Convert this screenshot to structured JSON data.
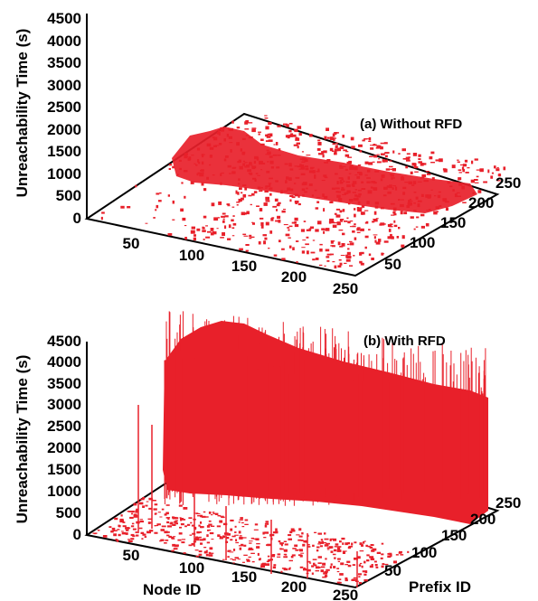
{
  "chart_data": [
    {
      "type": "scatter",
      "panel": "a",
      "annotation": "(a) Without RFD",
      "zlabel": "Unreachability Time (s)",
      "xlabel": "",
      "ylabel": "",
      "z_ticks": [
        "0",
        "500",
        "1000",
        "1500",
        "2000",
        "2500",
        "3000",
        "3500",
        "4000",
        "4500"
      ],
      "x_ticks": [
        "50",
        "100",
        "150",
        "200",
        "250"
      ],
      "y_ticks": [
        "50",
        "100",
        "150",
        "200",
        "250"
      ],
      "xlim": [
        0,
        250
      ],
      "ylim": [
        0,
        250
      ],
      "zlim": [
        0,
        4500
      ],
      "color": "#e8202a",
      "description_values": {
        "typical_max_unreachability_s": 1000,
        "peak_unreachability_s": 1500
      }
    },
    {
      "type": "scatter",
      "panel": "b",
      "annotation": "(b) With RFD",
      "zlabel": "Unreachability Time (s)",
      "xlabel": "Node ID",
      "ylabel": "Prefix ID",
      "z_ticks": [
        "0",
        "500",
        "1000",
        "1500",
        "2000",
        "2500",
        "3000",
        "3500",
        "4000",
        "4500"
      ],
      "x_ticks": [
        "50",
        "100",
        "150",
        "200",
        "250"
      ],
      "y_ticks": [
        "50",
        "100",
        "150",
        "200",
        "250"
      ],
      "xlim": [
        0,
        250
      ],
      "ylim": [
        0,
        250
      ],
      "zlim": [
        0,
        4500
      ],
      "color": "#e8202a",
      "description_values": {
        "typical_unreachability_s": 3500,
        "peak_unreachability_s": 5000
      }
    }
  ]
}
